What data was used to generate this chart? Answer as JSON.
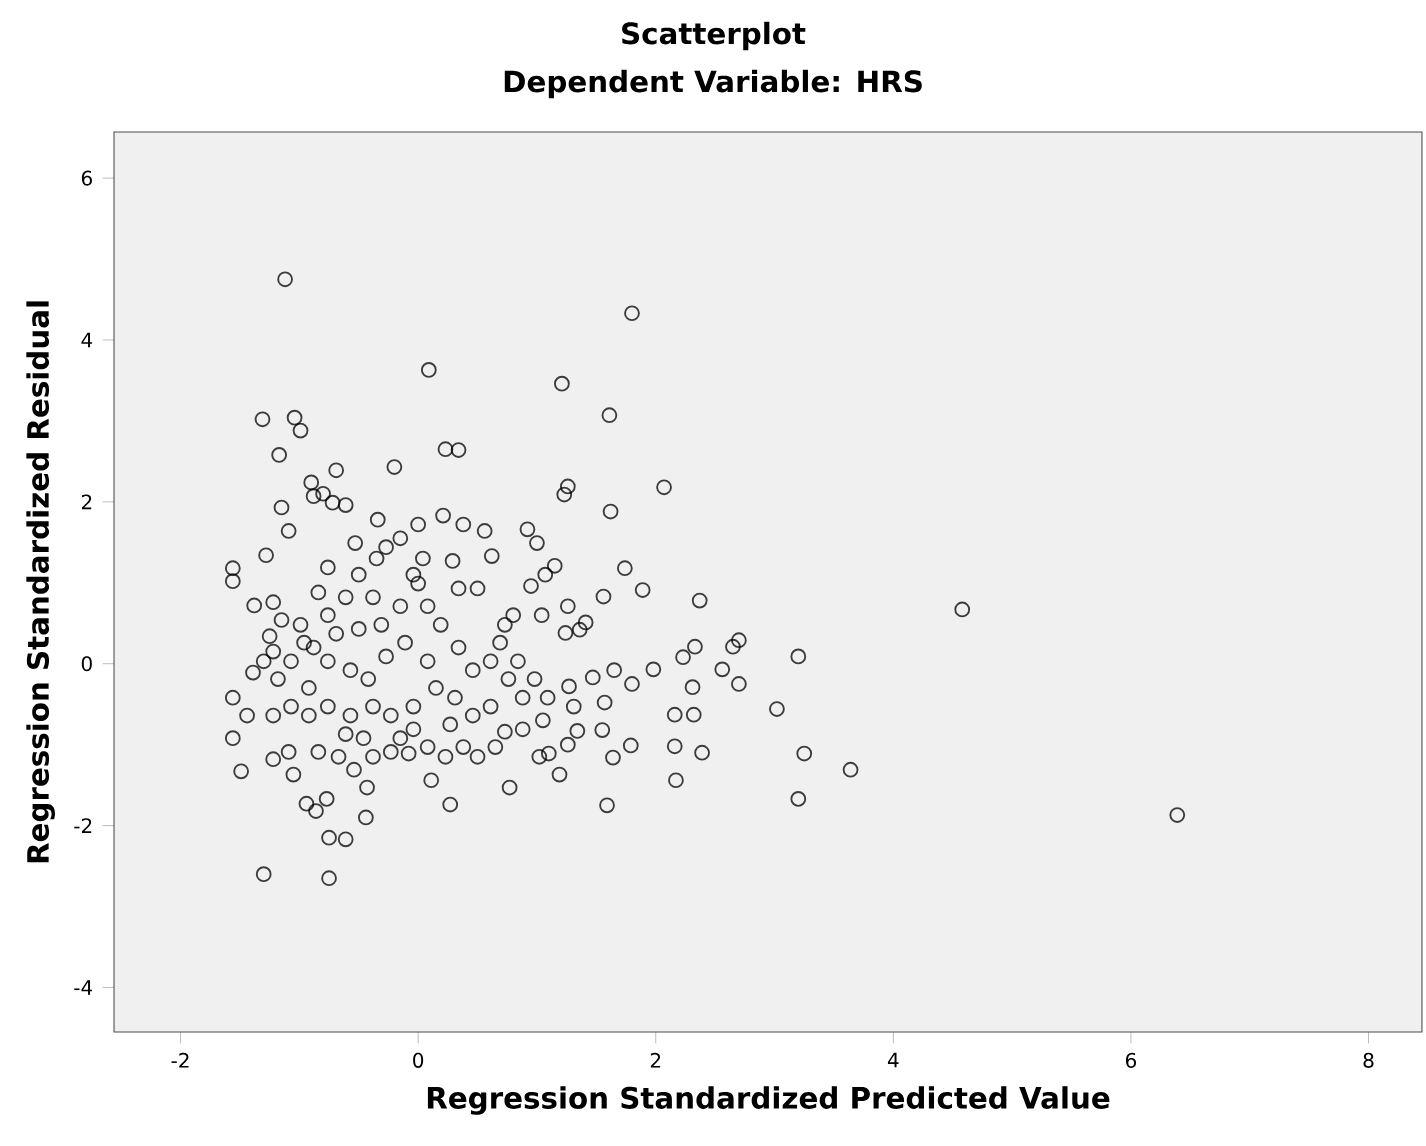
{
  "chart_data": {
    "type": "scatter",
    "title": "Scatterplot",
    "subtitle": "Dependent Variable: HRS",
    "xlabel": "Regression Standardized Predicted Value",
    "ylabel": "Regression Standardized Residual",
    "xlim": [
      -2.56,
      8.45
    ],
    "ylim": [
      -4.55,
      6.57
    ],
    "xticks": [
      -2,
      0,
      2,
      4,
      6,
      8
    ],
    "yticks": [
      -4,
      -2,
      0,
      2,
      4,
      6
    ],
    "marker": "circle",
    "color": "#000000",
    "x": [
      -1.12,
      1.8,
      0.09,
      1.21,
      -1.31,
      -1.04,
      -0.99,
      1.61,
      -1.17,
      0.23,
      0.34,
      -0.69,
      -0.2,
      -0.9,
      1.26,
      1.23,
      2.07,
      -0.88,
      -0.8,
      -0.72,
      -0.61,
      -1.15,
      1.62,
      -1.09,
      -1.56,
      -1.56,
      -1.28,
      4.58,
      6.39,
      3.2,
      3.02,
      3.25,
      3.64,
      3.2,
      2.7,
      2.65,
      2.7,
      2.56,
      2.37,
      2.33,
      2.23,
      2.31,
      2.32,
      2.16,
      2.16,
      2.39,
      2.17,
      1.98,
      1.89,
      1.74,
      1.56,
      1.8,
      1.79,
      1.64,
      1.59,
      1.55,
      1.65,
      1.57,
      1.47,
      1.41,
      1.26,
      1.36,
      1.24,
      1.27,
      1.31,
      1.34,
      1.26,
      1.19,
      1.1,
      1.02,
      0.92,
      1.0,
      1.15,
      1.07,
      0.95,
      1.04,
      0.8,
      0.77,
      0.27,
      0.11,
      -0.44,
      -0.43,
      -0.94,
      -0.86,
      -0.77,
      -0.75,
      -0.61,
      -1.3,
      -0.75,
      -1.49,
      -1.56,
      -1.56,
      -1.39,
      -1.25,
      -1.38,
      -1.22,
      -1.15,
      -0.96,
      -1.07,
      -1.18,
      -1.22,
      -1.22,
      -1.09,
      -1.05,
      -1.44,
      -0.92,
      -0.84,
      -0.67,
      -0.54,
      -0.38,
      -0.23,
      -0.08,
      0.08,
      0.23,
      0.38,
      0.5,
      0.65,
      0.73,
      0.88,
      1.05,
      1.09,
      0.98,
      0.84,
      0.69,
      0.61,
      0.46,
      0.34,
      0.19,
      0.08,
      0.0,
      -0.04,
      -0.15,
      0.0,
      0.21,
      0.38,
      0.56,
      0.62,
      0.29,
      0.04,
      -0.34,
      -0.35,
      -0.53,
      -0.27,
      -0.5,
      -0.76,
      -0.84,
      -0.61,
      -0.38,
      -0.15,
      -0.31,
      -0.5,
      -0.69,
      -0.88,
      -0.76,
      -0.57,
      -0.42,
      -0.27,
      -0.11,
      0.08,
      0.15,
      0.31,
      0.46,
      0.61,
      -0.04,
      -0.23,
      -0.38,
      -0.57,
      -0.76,
      -0.92,
      -1.07,
      -1.3,
      -1.22,
      -0.99,
      -0.76,
      -0.04,
      -0.15,
      -0.46,
      -0.61,
      0.27,
      0.88,
      0.76,
      0.73,
      0.5,
      0.34
    ],
    "values": [
      4.75,
      4.33,
      3.63,
      3.46,
      3.02,
      3.04,
      2.88,
      3.07,
      2.58,
      2.65,
      2.64,
      2.39,
      2.43,
      2.24,
      2.19,
      2.09,
      2.18,
      2.07,
      2.1,
      1.99,
      1.96,
      1.93,
      1.88,
      1.64,
      1.18,
      1.02,
      1.34,
      0.67,
      -1.87,
      0.09,
      -0.56,
      -1.11,
      -1.31,
      -1.67,
      0.29,
      0.21,
      -0.25,
      -0.07,
      0.78,
      0.21,
      0.08,
      -0.29,
      -0.63,
      -0.63,
      -1.02,
      -1.1,
      -1.44,
      -0.07,
      0.91,
      1.18,
      0.83,
      -0.25,
      -1.01,
      -1.16,
      -1.75,
      -0.82,
      -0.08,
      -0.48,
      -0.17,
      0.51,
      0.71,
      0.42,
      0.38,
      -0.28,
      -0.53,
      -0.83,
      -1.0,
      -1.37,
      -1.11,
      -1.15,
      1.66,
      1.49,
      1.21,
      1.1,
      0.96,
      0.6,
      0.6,
      -1.53,
      -1.74,
      -1.44,
      -1.9,
      -1.53,
      -1.73,
      -1.82,
      -1.67,
      -2.15,
      -2.17,
      -2.6,
      -2.65,
      -1.33,
      -0.92,
      -0.42,
      -0.11,
      0.34,
      0.72,
      0.76,
      0.54,
      0.26,
      0.03,
      -0.19,
      -0.64,
      -1.18,
      -1.09,
      -1.37,
      -0.64,
      -0.64,
      -1.09,
      -1.15,
      -1.31,
      -1.15,
      -1.09,
      -1.11,
      -1.03,
      -1.15,
      -1.03,
      -1.15,
      -1.03,
      -0.84,
      -0.81,
      -0.7,
      -0.42,
      -0.19,
      0.03,
      0.26,
      0.03,
      -0.08,
      0.2,
      0.48,
      0.71,
      0.99,
      1.1,
      1.55,
      1.72,
      1.83,
      1.72,
      1.64,
      1.33,
      1.27,
      1.3,
      1.78,
      1.3,
      1.49,
      1.44,
      1.1,
      1.19,
      0.88,
      0.82,
      0.82,
      0.71,
      0.48,
      0.43,
      0.37,
      0.2,
      0.03,
      -0.08,
      -0.19,
      0.09,
      0.26,
      0.03,
      -0.3,
      -0.42,
      -0.64,
      -0.53,
      -0.53,
      -0.64,
      -0.53,
      -0.64,
      -0.53,
      -0.3,
      -0.53,
      0.03,
      0.15,
      0.48,
      0.6,
      -0.81,
      -0.92,
      -0.92,
      -0.87,
      -0.75,
      -0.42,
      -0.19,
      0.48,
      0.93,
      0.93
    ]
  }
}
